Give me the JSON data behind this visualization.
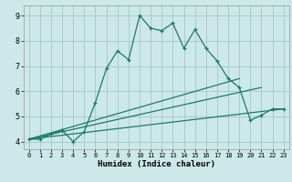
{
  "xlabel": "Humidex (Indice chaleur)",
  "bg_color": "#cce8e8",
  "grid_color": "#aacccc",
  "line_color": "#1a7a6a",
  "xlim": [
    -0.5,
    23.5
  ],
  "ylim": [
    3.7,
    9.4
  ],
  "xticks": [
    0,
    1,
    2,
    3,
    4,
    5,
    6,
    7,
    8,
    9,
    10,
    11,
    12,
    13,
    14,
    15,
    16,
    17,
    18,
    19,
    20,
    21,
    22,
    23
  ],
  "yticks": [
    4,
    5,
    6,
    7,
    8,
    9
  ],
  "line1_x": [
    0,
    1,
    2,
    3,
    4,
    5,
    6,
    7,
    8,
    9,
    10,
    11,
    12,
    13,
    14,
    15,
    16,
    17,
    18,
    19,
    20,
    21,
    22,
    23
  ],
  "line1_y": [
    4.1,
    4.1,
    4.3,
    4.45,
    4.0,
    4.4,
    5.55,
    6.9,
    7.6,
    7.25,
    9.0,
    8.5,
    8.4,
    8.7,
    7.7,
    8.45,
    7.7,
    7.2,
    6.5,
    6.15,
    4.85,
    5.05,
    5.3,
    5.3
  ],
  "line2_x": [
    0,
    19
  ],
  "line2_y": [
    4.1,
    6.5
  ],
  "line3_x": [
    0,
    21
  ],
  "line3_y": [
    4.1,
    6.15
  ],
  "line4_x": [
    0,
    23
  ],
  "line4_y": [
    4.1,
    5.3
  ]
}
